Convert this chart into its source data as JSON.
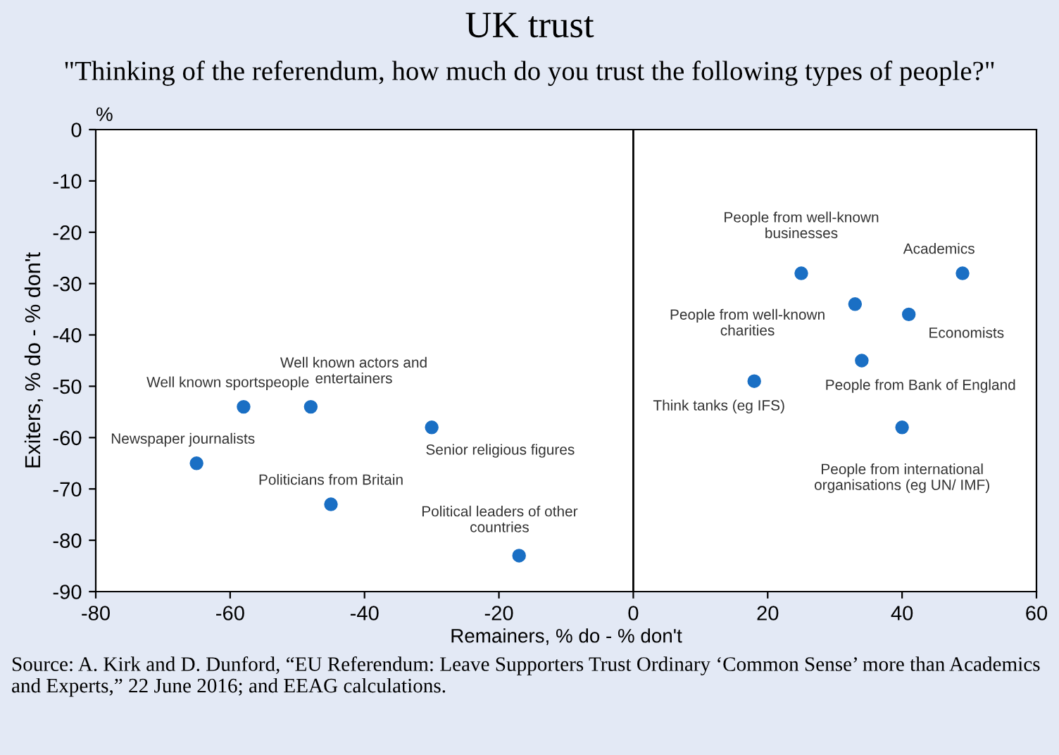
{
  "chart_data": {
    "type": "scatter",
    "title": "UK trust",
    "subtitle": "\"Thinking of the referendum, how much do you trust the following types of people?\"",
    "xlabel": "Remainers, % do - % don't",
    "ylabel": "Exiters, % do - % don't",
    "x": [
      -58,
      -48,
      -65,
      -45,
      -30,
      -17,
      25,
      49,
      33,
      41,
      34,
      18,
      40
    ],
    "series": [
      {
        "color": "#1a6fc4",
        "values": [
          -54,
          -54,
          -65,
          -73,
          -58,
          -83,
          -28,
          -28,
          -34,
          -36,
          -45,
          -49,
          -58
        ]
      }
    ],
    "marker": "circle",
    "xlim": [
      -80,
      60
    ],
    "xticks": [
      -80,
      -60,
      -40,
      -20,
      0,
      20,
      40,
      60
    ],
    "ylim": [
      -90,
      0
    ],
    "yticks": [
      -90,
      -80,
      -70,
      -60,
      -50,
      -40,
      -30,
      -20,
      -10,
      0
    ],
    "ref_lines": [
      {
        "axis": "x",
        "value": 0,
        "color": "#000000"
      }
    ],
    "grid": false,
    "annotations": [
      "%",
      {
        "text": "Well known sportspeople",
        "x": -58,
        "y": -54
      },
      {
        "text": "Well known actors and\nentertainers",
        "x": -48,
        "y": -54
      },
      {
        "text": "Newspaper journalists",
        "x": -65,
        "y": -65
      },
      {
        "text": "Politicians from Britain",
        "x": -45,
        "y": -73
      },
      {
        "text": "Senior religious figures",
        "x": -30,
        "y": -58
      },
      {
        "text": "Political leaders of other\ncountries",
        "x": -17,
        "y": -83
      },
      {
        "text": "People from well-known\nbusinesses",
        "x": 25,
        "y": -28
      },
      {
        "text": "Academics",
        "x": 49,
        "y": -28
      },
      {
        "text": "People from well-known\ncharities",
        "x": 33,
        "y": -34
      },
      {
        "text": "Economists",
        "x": 41,
        "y": -36
      },
      {
        "text": "People from Bank of England",
        "x": 34,
        "y": -45
      },
      {
        "text": "Think tanks (eg IFS)",
        "x": 18,
        "y": -49
      },
      {
        "text": "People from international\norganisations (eg UN/ IMF)",
        "x": 40,
        "y": -58
      },
      "Source: A. Kirk and D. Dunford, “EU Referendum: Leave Supporters Trust Ordinary ‘Common Sense’ more than Academics and Experts,” 22 June 2016; and EEAG calculations."
    ]
  }
}
